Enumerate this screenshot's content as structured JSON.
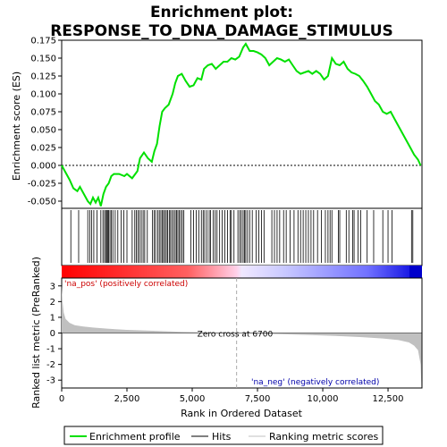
{
  "title_line1": "Enrichment plot:",
  "title_line2": "RESPONSE_TO_DNA_DAMAGE_STIMULUS",
  "colors": {
    "enrichment_line": "#00e000",
    "hits": "#000000",
    "zero_cross": "#aaaaaa",
    "ranking_fill": "#c0c0c0",
    "pos_label": "#cc0000",
    "neg_label": "#0000aa",
    "frame": "#000000"
  },
  "chart_data": [
    {
      "type": "line",
      "panel": "enrichment-profile",
      "ylabel": "Enrichment score (ES)",
      "ylim": [
        -0.06,
        0.175
      ],
      "xlim": [
        0,
        13800
      ],
      "yticks": [
        -0.05,
        -0.025,
        0.0,
        0.025,
        0.05,
        0.075,
        0.1,
        0.125,
        0.15,
        0.175
      ],
      "ytick_labels": [
        "-0.050",
        "-0.025",
        "0.000",
        "0.025",
        "0.050",
        "0.075",
        "0.100",
        "0.125",
        "0.150",
        "0.175"
      ],
      "x": [
        0,
        150,
        300,
        450,
        600,
        700,
        850,
        1000,
        1100,
        1200,
        1300,
        1400,
        1500,
        1600,
        1700,
        1800,
        1900,
        2000,
        2200,
        2400,
        2500,
        2700,
        2900,
        3000,
        3150,
        3300,
        3450,
        3550,
        3650,
        3750,
        3850,
        3950,
        4100,
        4250,
        4350,
        4450,
        4600,
        4750,
        4900,
        5050,
        5200,
        5350,
        5450,
        5600,
        5750,
        5900,
        6050,
        6200,
        6350,
        6500,
        6650,
        6800,
        6950,
        7050,
        7200,
        7350,
        7500,
        7650,
        7800,
        7950,
        8100,
        8250,
        8400,
        8550,
        8700,
        8850,
        9000,
        9150,
        9300,
        9450,
        9600,
        9750,
        9900,
        10050,
        10200,
        10350,
        10500,
        10650,
        10800,
        10950,
        11100,
        11250,
        11400,
        11550,
        11700,
        11850,
        12000,
        12150,
        12300,
        12450,
        12600,
        12750,
        12900,
        13050,
        13200,
        13350,
        13500,
        13650,
        13750
      ],
      "y": [
        0.0,
        -0.01,
        -0.02,
        -0.032,
        -0.036,
        -0.03,
        -0.04,
        -0.05,
        -0.054,
        -0.045,
        -0.052,
        -0.045,
        -0.057,
        -0.04,
        -0.03,
        -0.025,
        -0.015,
        -0.012,
        -0.012,
        -0.015,
        -0.012,
        -0.018,
        -0.008,
        0.01,
        0.018,
        0.01,
        0.005,
        0.02,
        0.03,
        0.055,
        0.075,
        0.08,
        0.085,
        0.1,
        0.115,
        0.125,
        0.128,
        0.118,
        0.11,
        0.112,
        0.122,
        0.12,
        0.135,
        0.14,
        0.142,
        0.135,
        0.14,
        0.145,
        0.145,
        0.15,
        0.148,
        0.152,
        0.165,
        0.17,
        0.16,
        0.16,
        0.158,
        0.155,
        0.15,
        0.14,
        0.145,
        0.15,
        0.148,
        0.145,
        0.148,
        0.14,
        0.132,
        0.128,
        0.13,
        0.132,
        0.128,
        0.132,
        0.128,
        0.12,
        0.125,
        0.15,
        0.142,
        0.14,
        0.145,
        0.135,
        0.13,
        0.128,
        0.125,
        0.118,
        0.11,
        0.1,
        0.09,
        0.085,
        0.075,
        0.072,
        0.075,
        0.065,
        0.055,
        0.045,
        0.035,
        0.025,
        0.015,
        0.008,
        0.0
      ]
    },
    {
      "type": "hits",
      "panel": "hit-barcode",
      "hit_positions": [
        350,
        650,
        1000,
        1080,
        1150,
        1230,
        1350,
        1500,
        1580,
        1640,
        1690,
        1720,
        1760,
        1800,
        1850,
        1900,
        1960,
        2050,
        2150,
        2280,
        2380,
        2500,
        2700,
        2800,
        2860,
        2920,
        2980,
        3050,
        3120,
        3180,
        3280,
        3480,
        3540,
        3600,
        3680,
        3740,
        3800,
        3860,
        3900,
        3960,
        4010,
        4060,
        4120,
        4170,
        4230,
        4290,
        4350,
        4400,
        4450,
        4500,
        4560,
        4620,
        4680,
        4950,
        5050,
        5150,
        5250,
        5350,
        5420,
        5480,
        5560,
        5650,
        5700,
        5800,
        5880,
        5950,
        6050,
        6150,
        6250,
        6350,
        6450,
        6500,
        6600,
        6750,
        6820,
        6880,
        6950,
        7000,
        7050,
        7120,
        7200,
        7300,
        7450,
        7550,
        7650,
        7750,
        8050,
        8150,
        8250,
        8350,
        8500,
        8600,
        8750,
        8900,
        9050,
        9150,
        9250,
        9350,
        9450,
        9550,
        9650,
        9800,
        9950,
        10100,
        10200,
        10280,
        10350,
        10600,
        10650,
        10900,
        11000,
        11150,
        11200,
        11350,
        11450,
        11700,
        11950,
        12300,
        12500,
        12650,
        13400,
        13450
      ]
    },
    {
      "type": "area",
      "panel": "ranked-list-metric",
      "ylabel": "Ranked list metric (PreRanked)",
      "xlabel": "Rank in Ordered Dataset",
      "ylim": [
        -3.5,
        3.5
      ],
      "xlim": [
        0,
        13800
      ],
      "yticks": [
        -3,
        -2,
        -1,
        0,
        1,
        2,
        3
      ],
      "ytick_labels": [
        "-3",
        "-2",
        "-1",
        "0",
        "1",
        "2",
        "3"
      ],
      "xticks": [
        0,
        2500,
        5000,
        7500,
        10000,
        12500
      ],
      "xtick_labels": [
        "0",
        "2,500",
        "5,000",
        "7,500",
        "10,000",
        "12,500"
      ],
      "x": [
        0,
        30,
        80,
        150,
        300,
        500,
        800,
        1200,
        1800,
        2500,
        3500,
        4500,
        5500,
        6700,
        7500,
        8500,
        9500,
        10500,
        11500,
        12300,
        12900,
        13300,
        13500,
        13650,
        13750,
        13780
      ],
      "y": [
        3.0,
        2.0,
        1.3,
        0.9,
        0.65,
        0.5,
        0.42,
        0.35,
        0.27,
        0.2,
        0.14,
        0.08,
        0.04,
        0.0,
        -0.04,
        -0.08,
        -0.13,
        -0.19,
        -0.26,
        -0.35,
        -0.45,
        -0.6,
        -0.8,
        -1.1,
        -2.0,
        -3.5
      ],
      "zero_cross_rank": 6700,
      "zero_cross_label": "Zero cross at 6700",
      "pos_label": "'na_pos' (positively correlated)",
      "neg_label": "'na_neg' (negatively correlated)"
    }
  ],
  "legend": {
    "items": [
      {
        "label": "Enrichment profile",
        "icon": "green-line-icon"
      },
      {
        "label": "Hits",
        "icon": "black-line-icon"
      },
      {
        "label": "Ranking metric scores",
        "icon": "gray-line-icon"
      }
    ]
  }
}
